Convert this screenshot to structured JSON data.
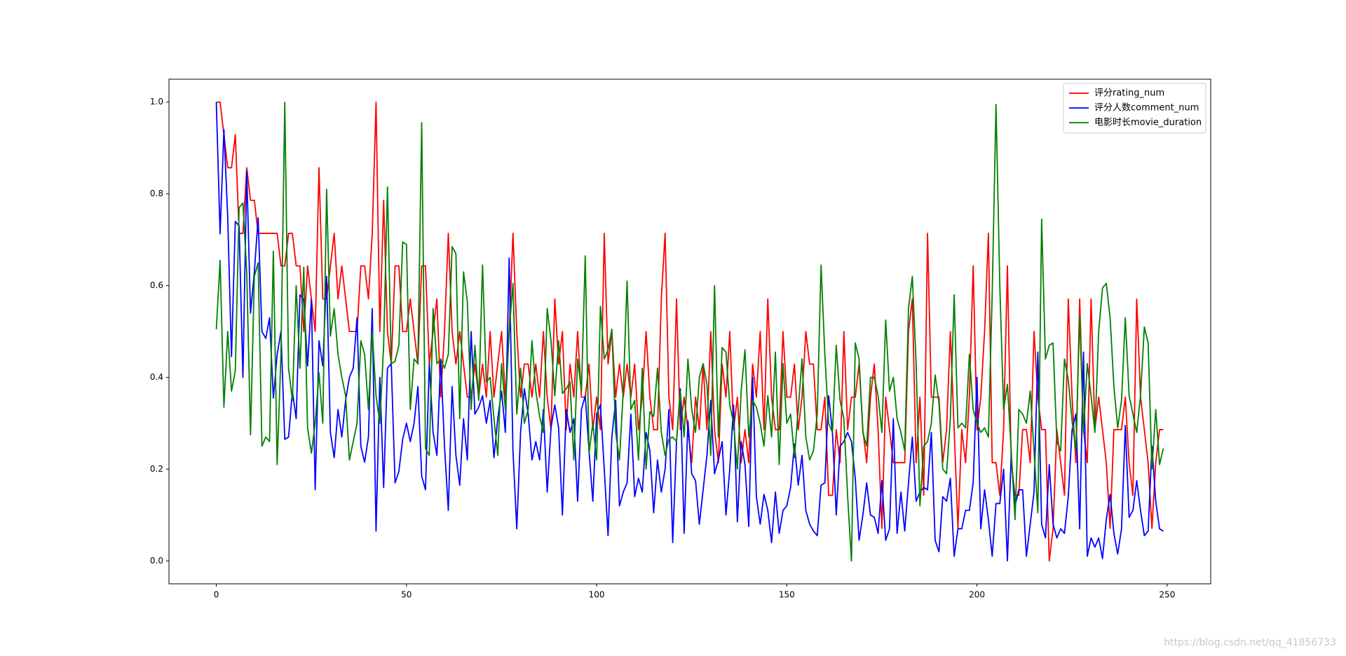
{
  "chart_data": {
    "type": "line",
    "legend": "upper right",
    "watermark": "https://blog.csdn.net/qq_41856733",
    "xlim": [
      -12.45,
      261.45
    ],
    "ylim": [
      -0.05,
      1.05
    ],
    "xticks": [
      0,
      50,
      100,
      150,
      200,
      250
    ],
    "yticks": [
      {
        "value": 0,
        "label": "0.0"
      },
      {
        "value": 0.2,
        "label": "0.2"
      },
      {
        "value": 0.4,
        "label": "0.4"
      },
      {
        "value": 0.6,
        "label": "0.6"
      },
      {
        "value": 0.8,
        "label": "0.8"
      },
      {
        "value": 1,
        "label": "1.0"
      }
    ],
    "x": [
      0,
      1,
      2,
      3,
      4,
      5,
      6,
      7,
      8,
      9,
      10,
      11,
      12,
      13,
      14,
      15,
      16,
      17,
      18,
      19,
      20,
      21,
      22,
      23,
      24,
      25,
      26,
      27,
      28,
      29,
      30,
      31,
      32,
      33,
      34,
      35,
      36,
      37,
      38,
      39,
      40,
      41,
      42,
      43,
      44,
      45,
      46,
      47,
      48,
      49,
      50,
      51,
      52,
      53,
      54,
      55,
      56,
      57,
      58,
      59,
      60,
      61,
      62,
      63,
      64,
      65,
      66,
      67,
      68,
      69,
      70,
      71,
      72,
      73,
      74,
      75,
      76,
      77,
      78,
      79,
      80,
      81,
      82,
      83,
      84,
      85,
      86,
      87,
      88,
      89,
      90,
      91,
      92,
      93,
      94,
      95,
      96,
      97,
      98,
      99,
      100,
      101,
      102,
      103,
      104,
      105,
      106,
      107,
      108,
      109,
      110,
      111,
      112,
      113,
      114,
      115,
      116,
      117,
      118,
      119,
      120,
      121,
      122,
      123,
      124,
      125,
      126,
      127,
      128,
      129,
      130,
      131,
      132,
      133,
      134,
      135,
      136,
      137,
      138,
      139,
      140,
      141,
      142,
      143,
      144,
      145,
      146,
      147,
      148,
      149,
      150,
      151,
      152,
      153,
      154,
      155,
      156,
      157,
      158,
      159,
      160,
      161,
      162,
      163,
      164,
      165,
      166,
      167,
      168,
      169,
      170,
      171,
      172,
      173,
      174,
      175,
      176,
      177,
      178,
      179,
      180,
      181,
      182,
      183,
      184,
      185,
      186,
      187,
      188,
      189,
      190,
      191,
      192,
      193,
      194,
      195,
      196,
      197,
      198,
      199,
      200,
      201,
      202,
      203,
      204,
      205,
      206,
      207,
      208,
      209,
      210,
      211,
      212,
      213,
      214,
      215,
      216,
      217,
      218,
      219,
      220,
      221,
      222,
      223,
      224,
      225,
      226,
      227,
      228,
      229,
      230,
      231,
      232,
      233,
      234,
      235,
      236,
      237,
      238,
      239,
      240,
      241,
      242,
      243,
      244,
      245,
      246,
      247,
      248,
      249
    ],
    "series": [
      {
        "name": "评分rating_num",
        "color": "#ff0000",
        "values": [
          1.0,
          1.0,
          0.929,
          0.857,
          0.857,
          0.929,
          0.714,
          0.714,
          0.857,
          0.786,
          0.786,
          0.714,
          0.714,
          0.714,
          0.714,
          0.714,
          0.714,
          0.643,
          0.643,
          0.714,
          0.714,
          0.643,
          0.643,
          0.5,
          0.643,
          0.571,
          0.5,
          0.857,
          0.571,
          0.571,
          0.643,
          0.714,
          0.571,
          0.643,
          0.571,
          0.5,
          0.5,
          0.5,
          0.643,
          0.643,
          0.571,
          0.714,
          1.0,
          0.5,
          0.786,
          0.5,
          0.429,
          0.643,
          0.643,
          0.5,
          0.5,
          0.571,
          0.5,
          0.429,
          0.643,
          0.643,
          0.429,
          0.5,
          0.571,
          0.357,
          0.5,
          0.714,
          0.5,
          0.429,
          0.5,
          0.429,
          0.357,
          0.357,
          0.429,
          0.357,
          0.429,
          0.357,
          0.5,
          0.357,
          0.429,
          0.5,
          0.357,
          0.5,
          0.714,
          0.5,
          0.357,
          0.429,
          0.429,
          0.357,
          0.429,
          0.357,
          0.5,
          0.357,
          0.286,
          0.571,
          0.429,
          0.5,
          0.286,
          0.429,
          0.357,
          0.5,
          0.357,
          0.357,
          0.429,
          0.286,
          0.357,
          0.286,
          0.714,
          0.429,
          0.5,
          0.357,
          0.429,
          0.357,
          0.429,
          0.357,
          0.429,
          0.286,
          0.357,
          0.5,
          0.357,
          0.286,
          0.286,
          0.571,
          0.714,
          0.357,
          0.286,
          0.571,
          0.286,
          0.357,
          0.286,
          0.214,
          0.357,
          0.286,
          0.429,
          0.286,
          0.5,
          0.286,
          0.214,
          0.429,
          0.357,
          0.5,
          0.286,
          0.357,
          0.214,
          0.286,
          0.214,
          0.429,
          0.357,
          0.5,
          0.286,
          0.571,
          0.357,
          0.286,
          0.286,
          0.5,
          0.357,
          0.357,
          0.429,
          0.286,
          0.357,
          0.5,
          0.429,
          0.429,
          0.286,
          0.286,
          0.357,
          0.143,
          0.143,
          0.286,
          0.214,
          0.5,
          0.286,
          0.357,
          0.357,
          0.429,
          0.286,
          0.214,
          0.357,
          0.429,
          0.286,
          0.071,
          0.357,
          0.286,
          0.214,
          0.214,
          0.214,
          0.214,
          0.5,
          0.571,
          0.214,
          0.357,
          0.143,
          0.714,
          0.357,
          0.357,
          0.357,
          0.214,
          0.286,
          0.5,
          0.286,
          0.071,
          0.286,
          0.214,
          0.357,
          0.643,
          0.286,
          0.357,
          0.5,
          0.714,
          0.214,
          0.214,
          0.143,
          0.286,
          0.643,
          0.214,
          0.143,
          0.143,
          0.286,
          0.286,
          0.214,
          0.5,
          0.357,
          0.286,
          0.286,
          0.0,
          0.071,
          0.286,
          0.214,
          0.143,
          0.571,
          0.357,
          0.214,
          0.571,
          0.286,
          0.214,
          0.571,
          0.286,
          0.357,
          0.286,
          0.214,
          0.071,
          0.286,
          0.286,
          0.286,
          0.357,
          0.214,
          0.143,
          0.571,
          0.357,
          0.286,
          0.214,
          0.071,
          0.214,
          0.286,
          0.286
        ]
      },
      {
        "name": "评分人数comment_num",
        "color": "#0000ff",
        "values": [
          1.0,
          0.713,
          0.94,
          0.75,
          0.445,
          0.74,
          0.73,
          0.4,
          0.85,
          0.54,
          0.63,
          0.748,
          0.5,
          0.485,
          0.53,
          0.355,
          0.45,
          0.5,
          0.265,
          0.27,
          0.37,
          0.31,
          0.58,
          0.57,
          0.425,
          0.57,
          0.155,
          0.48,
          0.425,
          0.62,
          0.28,
          0.225,
          0.33,
          0.27,
          0.35,
          0.4,
          0.42,
          0.53,
          0.25,
          0.215,
          0.27,
          0.55,
          0.065,
          0.4,
          0.16,
          0.42,
          0.43,
          0.17,
          0.195,
          0.265,
          0.3,
          0.26,
          0.3,
          0.38,
          0.185,
          0.155,
          0.43,
          0.28,
          0.23,
          0.44,
          0.25,
          0.11,
          0.38,
          0.23,
          0.165,
          0.31,
          0.22,
          0.5,
          0.32,
          0.335,
          0.36,
          0.3,
          0.35,
          0.225,
          0.31,
          0.37,
          0.28,
          0.66,
          0.24,
          0.07,
          0.28,
          0.375,
          0.32,
          0.22,
          0.26,
          0.22,
          0.33,
          0.15,
          0.29,
          0.34,
          0.29,
          0.1,
          0.33,
          0.28,
          0.31,
          0.13,
          0.33,
          0.36,
          0.24,
          0.13,
          0.32,
          0.34,
          0.2,
          0.055,
          0.27,
          0.35,
          0.12,
          0.15,
          0.17,
          0.32,
          0.14,
          0.18,
          0.15,
          0.28,
          0.24,
          0.105,
          0.22,
          0.15,
          0.2,
          0.33,
          0.04,
          0.26,
          0.375,
          0.06,
          0.305,
          0.19,
          0.175,
          0.08,
          0.155,
          0.23,
          0.35,
          0.19,
          0.22,
          0.26,
          0.1,
          0.2,
          0.34,
          0.085,
          0.26,
          0.21,
          0.075,
          0.4,
          0.14,
          0.08,
          0.145,
          0.11,
          0.04,
          0.15,
          0.06,
          0.11,
          0.12,
          0.16,
          0.255,
          0.165,
          0.23,
          0.11,
          0.08,
          0.065,
          0.055,
          0.165,
          0.17,
          0.36,
          0.28,
          0.1,
          0.25,
          0.26,
          0.28,
          0.26,
          0.18,
          0.045,
          0.1,
          0.17,
          0.1,
          0.095,
          0.06,
          0.175,
          0.045,
          0.07,
          0.31,
          0.06,
          0.15,
          0.065,
          0.17,
          0.27,
          0.13,
          0.15,
          0.16,
          0.155,
          0.28,
          0.045,
          0.02,
          0.14,
          0.13,
          0.18,
          0.01,
          0.07,
          0.07,
          0.11,
          0.11,
          0.17,
          0.4,
          0.07,
          0.155,
          0.09,
          0.01,
          0.125,
          0.125,
          0.2,
          0.0,
          0.23,
          0.12,
          0.155,
          0.155,
          0.01,
          0.08,
          0.15,
          0.455,
          0.08,
          0.05,
          0.21,
          0.08,
          0.05,
          0.07,
          0.06,
          0.14,
          0.285,
          0.32,
          0.07,
          0.455,
          0.01,
          0.05,
          0.03,
          0.05,
          0.005,
          0.09,
          0.145,
          0.06,
          0.015,
          0.07,
          0.295,
          0.095,
          0.11,
          0.175,
          0.11,
          0.055,
          0.065,
          0.25,
          0.13,
          0.07,
          0.065
        ]
      },
      {
        "name": "电影时长movie_duration",
        "color": "#008000",
        "values": [
          0.505,
          0.655,
          0.335,
          0.5,
          0.37,
          0.415,
          0.77,
          0.78,
          0.63,
          0.275,
          0.62,
          0.65,
          0.25,
          0.27,
          0.26,
          0.675,
          0.21,
          0.45,
          1.0,
          0.42,
          0.35,
          0.6,
          0.42,
          0.64,
          0.29,
          0.235,
          0.3,
          0.41,
          0.3,
          0.81,
          0.49,
          0.55,
          0.45,
          0.4,
          0.36,
          0.22,
          0.26,
          0.3,
          0.48,
          0.45,
          0.33,
          0.5,
          0.36,
          0.3,
          0.47,
          0.815,
          0.43,
          0.435,
          0.47,
          0.695,
          0.69,
          0.33,
          0.44,
          0.43,
          0.955,
          0.245,
          0.23,
          0.55,
          0.43,
          0.44,
          0.42,
          0.45,
          0.685,
          0.67,
          0.31,
          0.63,
          0.565,
          0.33,
          0.47,
          0.35,
          0.645,
          0.39,
          0.4,
          0.31,
          0.23,
          0.43,
          0.33,
          0.5,
          0.605,
          0.32,
          0.42,
          0.3,
          0.33,
          0.48,
          0.37,
          0.315,
          0.28,
          0.55,
          0.48,
          0.36,
          0.48,
          0.365,
          0.375,
          0.39,
          0.22,
          0.44,
          0.37,
          0.665,
          0.235,
          0.3,
          0.22,
          0.555,
          0.44,
          0.46,
          0.505,
          0.28,
          0.22,
          0.37,
          0.61,
          0.33,
          0.35,
          0.22,
          0.42,
          0.2,
          0.325,
          0.315,
          0.42,
          0.28,
          0.23,
          0.265,
          0.27,
          0.26,
          0.37,
          0.27,
          0.44,
          0.33,
          0.28,
          0.4,
          0.43,
          0.385,
          0.23,
          0.6,
          0.27,
          0.465,
          0.455,
          0.34,
          0.3,
          0.2,
          0.37,
          0.46,
          0.27,
          0.35,
          0.335,
          0.3,
          0.25,
          0.36,
          0.27,
          0.455,
          0.21,
          0.43,
          0.3,
          0.32,
          0.225,
          0.33,
          0.44,
          0.27,
          0.22,
          0.24,
          0.32,
          0.645,
          0.45,
          0.3,
          0.28,
          0.47,
          0.35,
          0.31,
          0.14,
          0.0,
          0.475,
          0.44,
          0.28,
          0.25,
          0.4,
          0.4,
          0.36,
          0.28,
          0.525,
          0.37,
          0.4,
          0.31,
          0.28,
          0.24,
          0.55,
          0.62,
          0.43,
          0.12,
          0.25,
          0.26,
          0.3,
          0.405,
          0.345,
          0.2,
          0.19,
          0.31,
          0.58,
          0.29,
          0.3,
          0.29,
          0.45,
          0.33,
          0.3,
          0.28,
          0.29,
          0.27,
          0.58,
          0.995,
          0.6,
          0.33,
          0.385,
          0.24,
          0.09,
          0.33,
          0.32,
          0.3,
          0.37,
          0.24,
          0.105,
          0.745,
          0.44,
          0.47,
          0.475,
          0.26,
          0.24,
          0.44,
          0.395,
          0.305,
          0.24,
          0.535,
          0.28,
          0.43,
          0.36,
          0.28,
          0.5,
          0.595,
          0.605,
          0.53,
          0.38,
          0.29,
          0.35,
          0.53,
          0.36,
          0.32,
          0.28,
          0.36,
          0.51,
          0.475,
          0.2,
          0.33,
          0.21,
          0.245
        ]
      }
    ]
  }
}
